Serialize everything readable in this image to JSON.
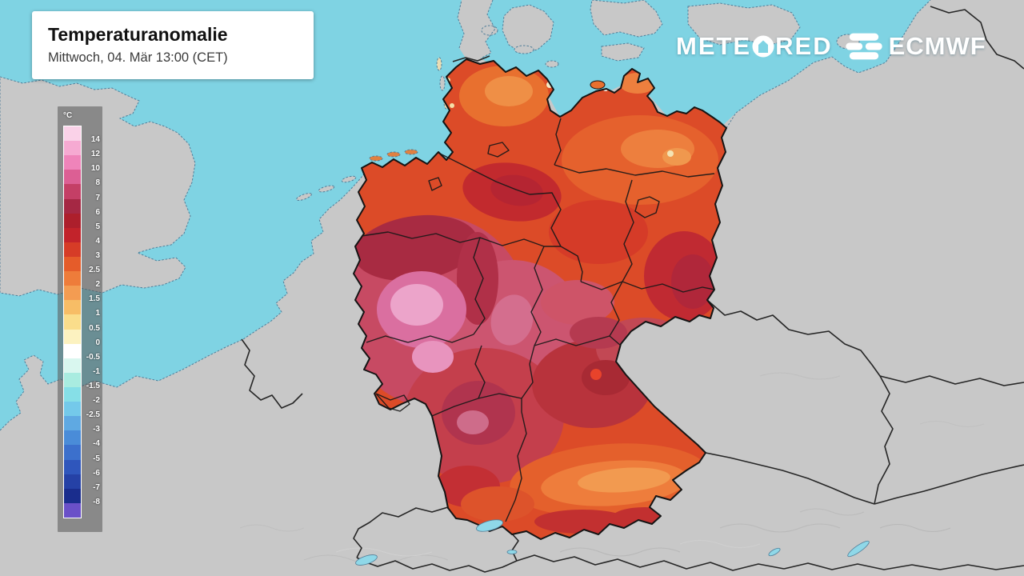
{
  "title_card": {
    "title": "Temperaturanomalie",
    "subtitle": "Mittwoch, 04. Mär 13:00 (CET)"
  },
  "branding": {
    "meteored_full": "METEORED",
    "meteored_prefix": "METE",
    "meteored_suffix": "RED",
    "partner": "ECMWF"
  },
  "legend": {
    "unit": "°C",
    "tick_labels": [
      "14",
      "12",
      "10",
      "8",
      "7",
      "6",
      "5",
      "4",
      "3",
      "2.5",
      "2",
      "1.5",
      "1",
      "0.5",
      "0",
      "-0.5",
      "-1",
      "-1.5",
      "-2",
      "-2.5",
      "-3",
      "-4",
      "-5",
      "-6",
      "-7",
      "-8"
    ],
    "band_colors": [
      "#fad2e8",
      "#f6aad2",
      "#ef84ba",
      "#dc5f94",
      "#c43f66",
      "#a52844",
      "#ad1f2c",
      "#c2232b",
      "#d63c27",
      "#e55c2a",
      "#ee7c3a",
      "#f39c52",
      "#f7bd66",
      "#fadd8b",
      "#fcf2c0",
      "#ffffff",
      "#d9f7ef",
      "#a9ece0",
      "#86dfe7",
      "#74c9ea",
      "#5fa9e2",
      "#4a8cd8",
      "#3c70cc",
      "#2f56bc",
      "#2541a6",
      "#1a2d8d",
      "#6a50c8"
    ]
  },
  "map": {
    "sea_color": "#7fd3e3",
    "land_color": "#c8c8c8",
    "coastline_color": "#4f7d98",
    "country_border_color": "#262626",
    "germany_border_color": "#141414",
    "lake_color": "#8fd8e8"
  }
}
